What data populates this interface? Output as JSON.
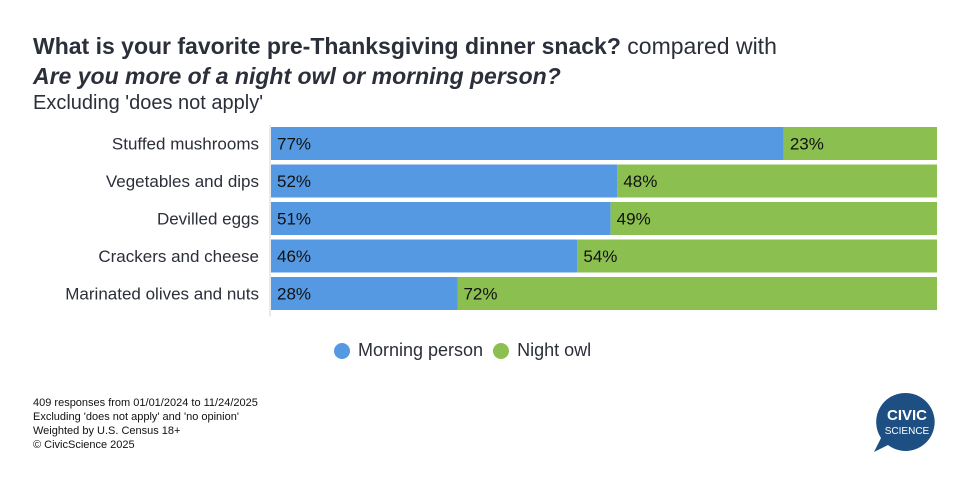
{
  "header": {
    "question1": "What is your favorite pre-Thanksgiving dinner snack?",
    "connector": "compared with",
    "question2": "Are you more of a night owl or morning person?",
    "subtitle": "Excluding 'does not apply'"
  },
  "chart_data": {
    "type": "bar",
    "orientation": "horizontal",
    "stacked": true,
    "title": "What is your favorite pre-Thanksgiving dinner snack? compared with Are you more of a night owl or morning person?",
    "subtitle": "Excluding 'does not apply'",
    "categories": [
      "Stuffed mushrooms",
      "Vegetables and dips",
      "Devilled eggs",
      "Crackers and cheese",
      "Marinated olives and nuts"
    ],
    "series": [
      {
        "name": "Morning person",
        "color": "#5599e3",
        "values": [
          77,
          52,
          51,
          46,
          28
        ]
      },
      {
        "name": "Night owl",
        "color": "#8bbf50",
        "values": [
          23,
          48,
          49,
          54,
          72
        ]
      }
    ],
    "xlim": [
      0,
      100
    ],
    "value_suffix": "%",
    "legend_position": "bottom-center",
    "grid": false
  },
  "legend": {
    "items": [
      {
        "label": "Morning person",
        "color": "#5599e3"
      },
      {
        "label": "Night owl",
        "color": "#8bbf50"
      }
    ]
  },
  "footer": {
    "lines": [
      "409 responses from 01/01/2024 to 11/24/2025",
      "Excluding 'does not apply' and 'no opinion'",
      "Weighted by U.S. Census 18+",
      "© CivicScience 2025"
    ]
  },
  "logo": {
    "line1": "CIVIC",
    "line2": "SCIENCE",
    "color": "#1d4f82"
  }
}
